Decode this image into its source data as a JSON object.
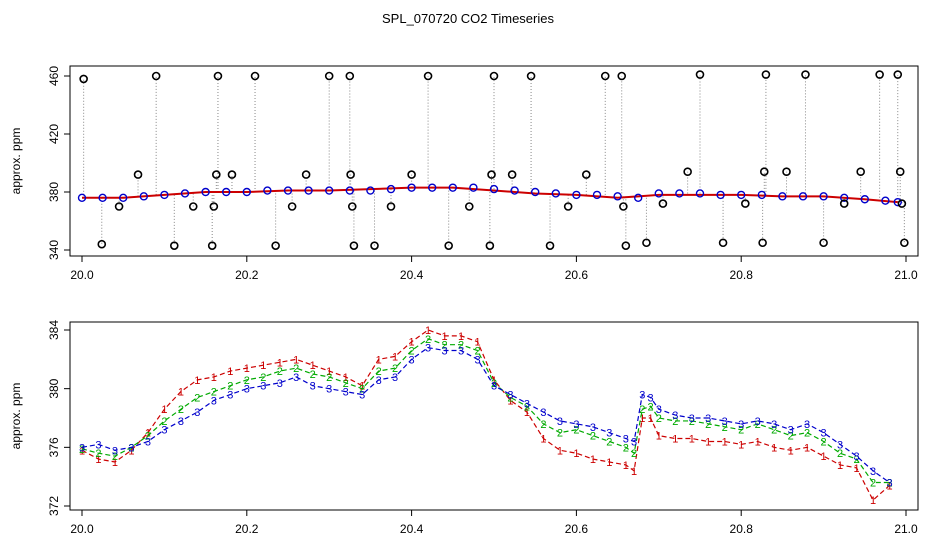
{
  "page": {
    "title": "SPL_070720  CO2 Timeseries"
  },
  "chart_data": [
    {
      "type": "scatter",
      "title": "",
      "xlabel": "",
      "ylabel": "approx. ppm",
      "xlim": [
        20.0,
        21.0
      ],
      "ylim": [
        340,
        460
      ],
      "xticks": [
        "20.0",
        "20.2",
        "20.4",
        "20.6",
        "20.8",
        "21.0"
      ],
      "yticks": [
        "340",
        "380",
        "420",
        "460"
      ],
      "grid": false,
      "legend": "none",
      "series": [
        {
          "name": "",
          "type": "line",
          "color": "#cc0000",
          "x": [
            20.0,
            20.05,
            20.1,
            20.15,
            20.2,
            20.25,
            20.3,
            20.35,
            20.4,
            20.45,
            20.5,
            20.55,
            20.6,
            20.65,
            20.7,
            20.75,
            20.8,
            20.85,
            20.9,
            20.95,
            20.99
          ],
          "y": [
            376,
            376,
            378,
            380,
            380,
            381,
            381,
            382,
            383,
            383,
            381,
            379,
            378,
            376,
            378,
            378,
            378,
            377,
            377,
            375,
            373
          ]
        },
        {
          "name": "",
          "type": "points",
          "color": "#0000cc",
          "x": [
            20.0,
            20.025,
            20.05,
            20.075,
            20.1,
            20.125,
            20.15,
            20.175,
            20.2,
            20.225,
            20.25,
            20.275,
            20.3,
            20.325,
            20.35,
            20.375,
            20.4,
            20.425,
            20.45,
            20.475,
            20.5,
            20.525,
            20.55,
            20.575,
            20.6,
            20.625,
            20.65,
            20.675,
            20.7,
            20.725,
            20.75,
            20.775,
            20.8,
            20.825,
            20.85,
            20.875,
            20.9,
            20.925,
            20.95,
            20.975,
            20.99
          ],
          "y": [
            376,
            376,
            376,
            377,
            378,
            379,
            380,
            380,
            380,
            381,
            381,
            381,
            381,
            381,
            381,
            382,
            383,
            383,
            383,
            383,
            382,
            381,
            380,
            379,
            378,
            378,
            377,
            376,
            379,
            379,
            379,
            378,
            378,
            378,
            377,
            377,
            377,
            376,
            375,
            374,
            373
          ]
        },
        {
          "name": "",
          "type": "points",
          "color": "#000000",
          "x": [
            20.002,
            20.024,
            20.045,
            20.068,
            20.09,
            20.112,
            20.135,
            20.158,
            20.16,
            20.163,
            20.165,
            20.182,
            20.21,
            20.235,
            20.255,
            20.272,
            20.3,
            20.325,
            20.326,
            20.328,
            20.33,
            20.355,
            20.375,
            20.4,
            20.42,
            20.445,
            20.47,
            20.495,
            20.497,
            20.5,
            20.522,
            20.545,
            20.568,
            20.59,
            20.612,
            20.635,
            20.655,
            20.657,
            20.66,
            20.685,
            20.705,
            20.735,
            20.75,
            20.778,
            20.805,
            20.826,
            20.828,
            20.83,
            20.855,
            20.878,
            20.9,
            20.925,
            20.945,
            20.968,
            20.99,
            20.993,
            20.995,
            20.998
          ],
          "y": [
            458,
            344,
            370,
            392,
            460,
            343,
            370,
            343,
            370,
            392,
            460,
            392,
            460,
            343,
            370,
            392,
            460,
            460,
            392,
            370,
            343,
            343,
            370,
            392,
            460,
            343,
            370,
            343,
            392,
            460,
            392,
            460,
            343,
            370,
            392,
            460,
            460,
            370,
            343,
            345,
            372,
            394,
            461,
            345,
            372,
            345,
            394,
            461,
            394,
            461,
            345,
            372,
            394,
            461,
            461,
            394,
            372,
            345
          ]
        }
      ]
    },
    {
      "type": "line",
      "title": "",
      "xlabel": "",
      "ylabel": "approx. ppm",
      "xlim": [
        20.0,
        21.0
      ],
      "ylim": [
        372,
        384
      ],
      "xticks": [
        "20.0",
        "20.2",
        "20.4",
        "20.6",
        "20.8",
        "21.0"
      ],
      "yticks": [
        "372",
        "376",
        "380",
        "384"
      ],
      "grid": false,
      "legend": "none",
      "series": [
        {
          "name": "",
          "color": "#cc0000",
          "point_label": "1",
          "x": [
            20.0,
            20.02,
            20.04,
            20.06,
            20.08,
            20.1,
            20.12,
            20.14,
            20.16,
            20.18,
            20.2,
            20.22,
            20.24,
            20.26,
            20.28,
            20.3,
            20.32,
            20.34,
            20.36,
            20.38,
            20.4,
            20.42,
            20.44,
            20.46,
            20.48,
            20.5,
            20.52,
            20.54,
            20.56,
            20.58,
            20.6,
            20.62,
            20.64,
            20.66,
            20.67,
            20.68,
            20.69,
            20.7,
            20.72,
            20.74,
            20.76,
            20.78,
            20.8,
            20.82,
            20.84,
            20.86,
            20.88,
            20.9,
            20.92,
            20.94,
            20.96,
            20.98
          ],
          "y": [
            375.8,
            375.2,
            375.0,
            375.8,
            377.0,
            378.6,
            379.8,
            380.6,
            380.8,
            381.2,
            381.4,
            381.6,
            381.8,
            382.0,
            381.6,
            381.2,
            380.8,
            380.2,
            382.0,
            382.2,
            383.2,
            384.0,
            383.6,
            383.6,
            383.2,
            380.6,
            379.2,
            378.4,
            376.6,
            375.8,
            375.6,
            375.2,
            375.0,
            374.8,
            374.4,
            378.0,
            378.0,
            376.8,
            376.6,
            376.6,
            376.4,
            376.4,
            376.2,
            376.4,
            376.0,
            375.8,
            376.0,
            375.4,
            374.8,
            374.6,
            372.4,
            373.4
          ]
        },
        {
          "name": "",
          "color": "#00aa00",
          "point_label": "2",
          "x": [
            20.0,
            20.02,
            20.04,
            20.06,
            20.08,
            20.1,
            20.12,
            20.14,
            20.16,
            20.18,
            20.2,
            20.22,
            20.24,
            20.26,
            20.28,
            20.3,
            20.32,
            20.34,
            20.36,
            20.38,
            20.4,
            20.42,
            20.44,
            20.46,
            20.48,
            20.5,
            20.52,
            20.54,
            20.56,
            20.58,
            20.6,
            20.62,
            20.64,
            20.66,
            20.67,
            20.68,
            20.69,
            20.7,
            20.72,
            20.74,
            20.76,
            20.78,
            20.8,
            20.82,
            20.84,
            20.86,
            20.88,
            20.9,
            20.92,
            20.94,
            20.96,
            20.98
          ],
          "y": [
            375.9,
            375.6,
            375.4,
            376.0,
            376.8,
            377.8,
            378.6,
            379.4,
            379.8,
            380.2,
            380.6,
            380.8,
            381.2,
            381.4,
            381.0,
            380.8,
            380.4,
            380.0,
            381.2,
            381.4,
            382.6,
            383.4,
            383.0,
            383.0,
            382.6,
            380.4,
            379.4,
            378.8,
            377.6,
            377.0,
            377.2,
            376.8,
            376.4,
            376.0,
            375.6,
            378.6,
            378.8,
            378.0,
            377.8,
            377.8,
            377.6,
            377.4,
            377.2,
            377.6,
            377.2,
            376.8,
            377.0,
            376.4,
            375.6,
            375.2,
            373.6,
            373.6
          ]
        },
        {
          "name": "",
          "color": "#0000cc",
          "point_label": "3",
          "x": [
            20.0,
            20.02,
            20.04,
            20.06,
            20.08,
            20.1,
            20.12,
            20.14,
            20.16,
            20.18,
            20.2,
            20.22,
            20.24,
            20.26,
            20.28,
            20.3,
            20.32,
            20.34,
            20.36,
            20.38,
            20.4,
            20.42,
            20.44,
            20.46,
            20.48,
            20.5,
            20.52,
            20.54,
            20.56,
            20.58,
            20.6,
            20.62,
            20.64,
            20.66,
            20.67,
            20.68,
            20.69,
            20.7,
            20.72,
            20.74,
            20.76,
            20.78,
            20.8,
            20.82,
            20.84,
            20.86,
            20.88,
            20.9,
            20.92,
            20.94,
            20.96,
            20.98
          ],
          "y": [
            376.0,
            376.2,
            375.8,
            376.0,
            376.4,
            377.2,
            377.8,
            378.4,
            379.2,
            379.6,
            380.0,
            380.2,
            380.4,
            380.8,
            380.2,
            380.0,
            379.8,
            379.6,
            380.6,
            380.8,
            382.0,
            382.8,
            382.6,
            382.6,
            382.0,
            380.2,
            379.6,
            379.0,
            378.4,
            377.8,
            377.6,
            377.4,
            377.0,
            376.6,
            376.4,
            379.6,
            379.4,
            378.6,
            378.2,
            378.0,
            378.0,
            377.8,
            377.6,
            377.8,
            377.6,
            377.2,
            377.6,
            377.0,
            376.2,
            375.4,
            374.4,
            373.6
          ]
        }
      ]
    }
  ]
}
